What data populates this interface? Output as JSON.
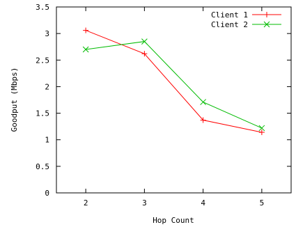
{
  "chart_data": {
    "type": "line",
    "title": "",
    "xlabel": "Hop Count",
    "ylabel": "Goodput (Mbps)",
    "x": [
      2,
      3,
      4,
      5
    ],
    "xlim": [
      1.5,
      5.5
    ],
    "ylim": [
      0,
      3.5
    ],
    "xticks": [
      "2",
      "3",
      "4",
      "5"
    ],
    "yticks": [
      "0",
      "0.5",
      "1",
      "1.5",
      "2",
      "2.5",
      "3",
      "3.5"
    ],
    "grid": false,
    "legend_position": "top-right",
    "series": [
      {
        "name": "Client 1",
        "color": "#ff0000",
        "marker": "plus",
        "values": [
          3.06,
          2.62,
          1.37,
          1.14
        ]
      },
      {
        "name": "Client 2",
        "color": "#00bb00",
        "marker": "cross",
        "values": [
          2.7,
          2.85,
          1.71,
          1.22
        ]
      }
    ]
  }
}
